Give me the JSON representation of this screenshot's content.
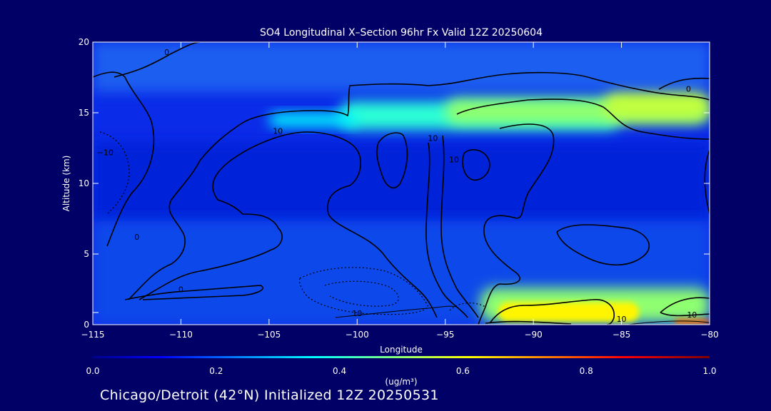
{
  "chart_data": {
    "type": "heatmap",
    "title": "SO4 Longitudinal X–Section 96hr  Fx Valid 12Z 20250604",
    "xlabel": "Longitude",
    "ylabel": "Altitude (km)",
    "xlim": [
      -115,
      -80
    ],
    "ylim": [
      0,
      20
    ],
    "x_ticks": [
      -115,
      -110,
      -105,
      -100,
      -95,
      -90,
      -85,
      -80
    ],
    "x_tick_labels": [
      "−115",
      "−110",
      "−105",
      "−100",
      "−95",
      "−90",
      "−85",
      "−80"
    ],
    "y_ticks": [
      0,
      5,
      10,
      15,
      20
    ],
    "y_tick_labels": [
      "0",
      "5",
      "10",
      "15",
      "20"
    ],
    "colorbar": {
      "label": "(ug/m³)",
      "range": [
        0.0,
        1.0
      ],
      "ticks": [
        0.0,
        0.2,
        0.4,
        0.6,
        0.8,
        1.0
      ],
      "tick_labels": [
        "0.0",
        "0.2",
        "0.4",
        "0.6",
        "0.8",
        "1.0"
      ],
      "colormap": "jet"
    },
    "contour_labels": [
      {
        "text": "0",
        "lon": -110.8,
        "alt": 19.1
      },
      {
        "text": "10",
        "lon": -104.5,
        "alt": 13.5
      },
      {
        "text": "10",
        "lon": -95.7,
        "alt": 13.0
      },
      {
        "text": "−10",
        "lon": -114.3,
        "alt": 12.0
      },
      {
        "text": "0",
        "lon": -112.5,
        "alt": 6.0
      },
      {
        "text": "0",
        "lon": -110.0,
        "alt": 2.3
      },
      {
        "text": "10",
        "lon": -100.0,
        "alt": 0.6
      },
      {
        "text": "10",
        "lon": -85.0,
        "alt": 0.2
      },
      {
        "text": "10",
        "lon": -81.0,
        "alt": 0.5
      },
      {
        "text": "0",
        "lon": -81.2,
        "alt": 16.5
      },
      {
        "text": "10",
        "lon": -94.5,
        "alt": 11.5
      }
    ],
    "concentration_regions": [
      {
        "lon_range": [
          -101,
          -85
        ],
        "alt_range": [
          13.8,
          15.8
        ],
        "value": 0.4
      },
      {
        "lon_range": [
          -95,
          -80
        ],
        "alt_range": [
          14.2,
          16.0
        ],
        "value": 0.5
      },
      {
        "lon_range": [
          -86,
          -80
        ],
        "alt_range": [
          14.6,
          16.4
        ],
        "value": 0.55
      },
      {
        "lon_range": [
          -105,
          -100
        ],
        "alt_range": [
          14.0,
          15.0
        ],
        "value": 0.35
      },
      {
        "lon_range": [
          -93,
          -80
        ],
        "alt_range": [
          0.2,
          2.6
        ],
        "value": 0.5
      },
      {
        "lon_range": [
          -92,
          -84
        ],
        "alt_range": [
          0.2,
          1.6
        ],
        "value": 0.62
      },
      {
        "lon_range": [
          -82,
          -80
        ],
        "alt_range": [
          0.0,
          0.4
        ],
        "value": 0.75
      }
    ]
  },
  "footer": "Chicago/Detroit (42°N) Initialized 12Z 20250531"
}
